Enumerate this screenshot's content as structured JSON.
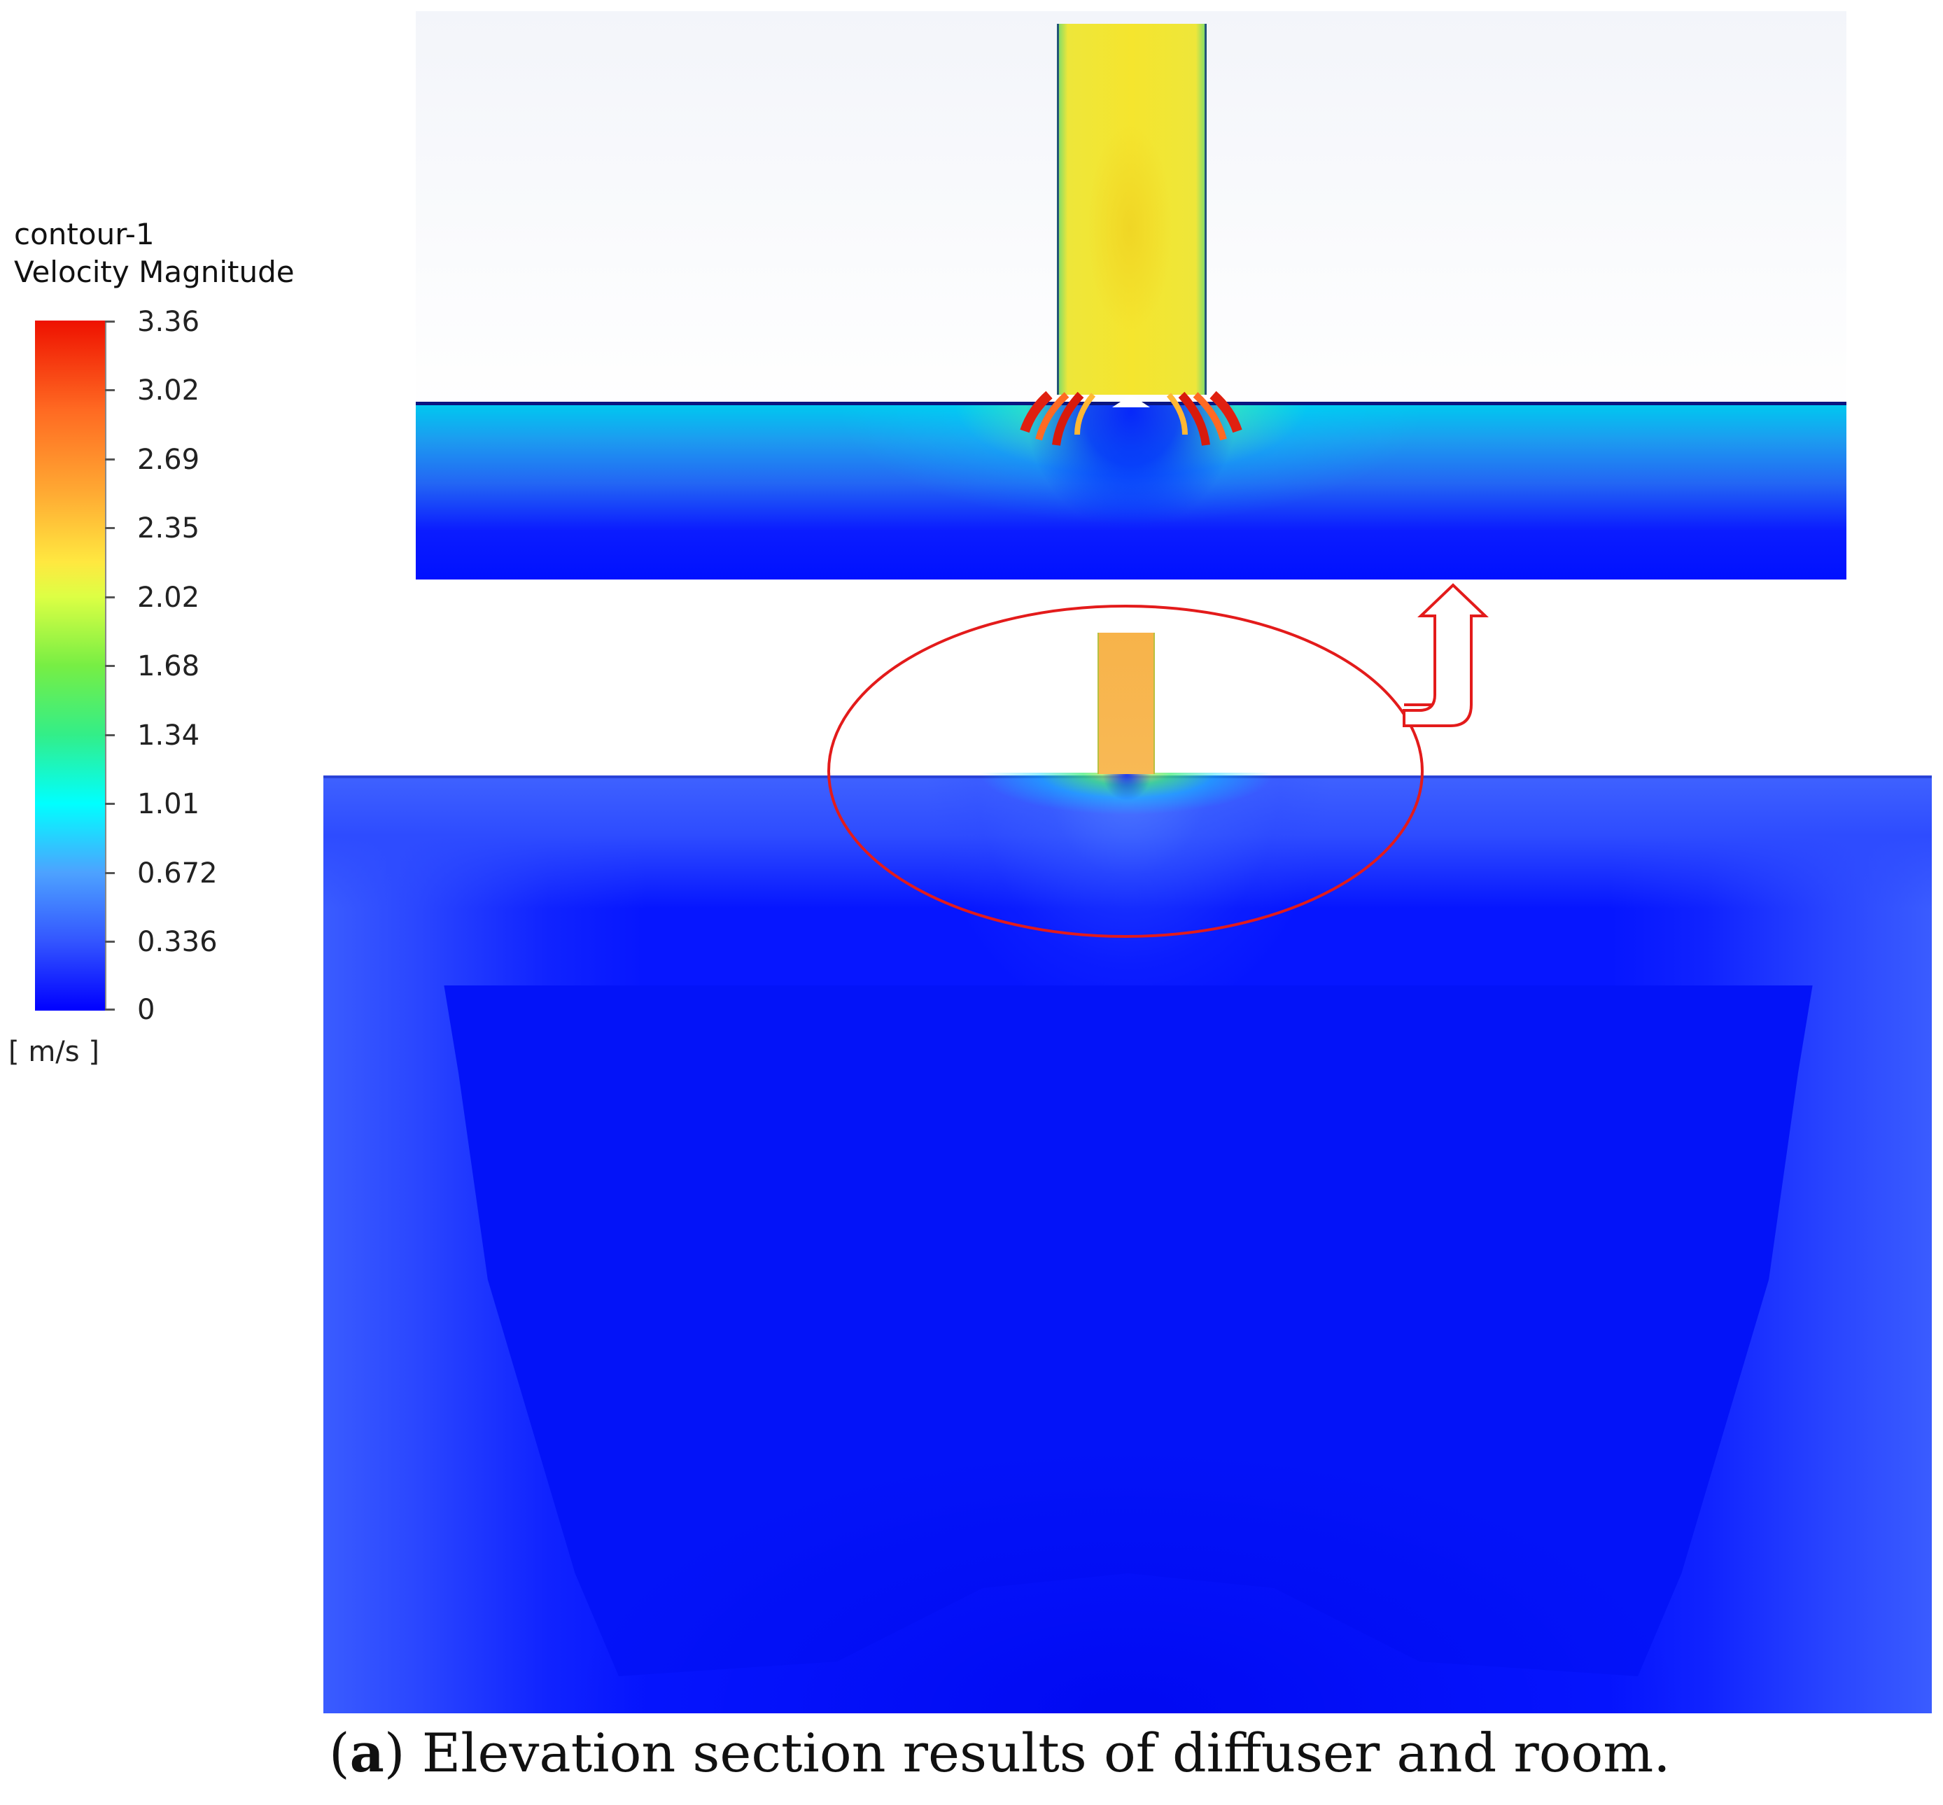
{
  "legend": {
    "title_line1": "contour-1",
    "title_line2": "Velocity Magnitude",
    "ticks": [
      "3.36",
      "3.02",
      "2.69",
      "2.35",
      "2.02",
      "1.68",
      "1.34",
      "1.01",
      "0.672",
      "0.336",
      "0"
    ],
    "unit": "[ m/s ]",
    "colors": {
      "max": "#ee1100",
      "high": "#ff6a22",
      "mid_high": "#ffe840",
      "mid": "#77ee44",
      "mid_low": "#00ffff",
      "low": "#4da2ff",
      "min": "#0000ff"
    }
  },
  "panels": {
    "zoom": "zoomed diffuser section",
    "room": "room elevation section"
  },
  "annotation": {
    "highlight_color": "#e31b1b",
    "arrow_icon": "up-arrow-icon"
  },
  "caption": {
    "open_paren": "(",
    "letter": "a",
    "text": ") Elevation section results of diffuser and room."
  }
}
